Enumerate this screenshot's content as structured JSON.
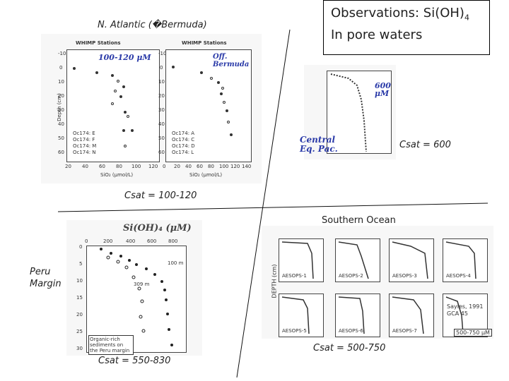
{
  "north_atlantic": {
    "heading": "N. Atlantic (�Bermuda)",
    "csat_caption": "Csat = 100-120",
    "left_plot": {
      "title": "WHIMP Stations",
      "note": "100-120 μM",
      "xlabel": "SiO₂ (μmol/L)",
      "ylabel": "Depth (cm)",
      "xticks": [
        "20",
        "40",
        "60",
        "80",
        "100",
        "120"
      ],
      "yticks": [
        "-10",
        "0",
        "10",
        "20",
        "30",
        "40",
        "50",
        "60"
      ],
      "legend": [
        "Oc174: E",
        "Oc174: F",
        "Oc174: M",
        "Oc174: N"
      ]
    },
    "right_plot": {
      "title": "WHIMP Stations",
      "note": "Off. Bermuda",
      "xlabel": "SiO₂ (μmol/L)",
      "ylabel": "Depth (cm)",
      "xticks": [
        "0",
        "20",
        "40",
        "60",
        "80",
        "100",
        "120",
        "140"
      ],
      "yticks": [
        "-10",
        "0",
        "10",
        "20",
        "30",
        "40",
        "50",
        "60"
      ],
      "legend": [
        "Oc174: A",
        "Oc174: C",
        "Oc174: D",
        "Oc174: L"
      ]
    }
  },
  "observations_box": {
    "line1_prefix": "Observations: Si(OH)",
    "line1_sub": "4",
    "line2": "In pore waters"
  },
  "central_eq_pac": {
    "note_top": "600 μM",
    "note_bottom_1": "Central",
    "note_bottom_2": "Eq. Pac.",
    "csat_caption": "Csat = 600"
  },
  "peru": {
    "heading_1": "Peru",
    "heading_2": "Margin",
    "top_label": "Si(OH)₄ (μM)",
    "xticks": [
      "0",
      "200",
      "400",
      "600",
      "800"
    ],
    "yticks": [
      "0",
      "5",
      "10",
      "15",
      "20",
      "25",
      "30"
    ],
    "station_a": "100 m",
    "station_b": "309 m",
    "box_note": "Organic-rich sediments on the Peru margin",
    "csat_caption": "Csat = 550-830"
  },
  "southern_ocean": {
    "heading": "Southern Ocean",
    "ylabel": "DEPTH (cm)",
    "stations_top": [
      "AESOPS-1",
      "AESOPS-2",
      "AESOPS-3",
      "AESOPS-4"
    ],
    "stations_bottom": [
      "AESOPS-5",
      "AESOPS-6",
      "AESOPS-7",
      "AESOPS-8"
    ],
    "credit": "Sayles, 1991 GCA 45",
    "scale_note": "500-750 μM",
    "csat_caption": "Csat = 500-750"
  }
}
